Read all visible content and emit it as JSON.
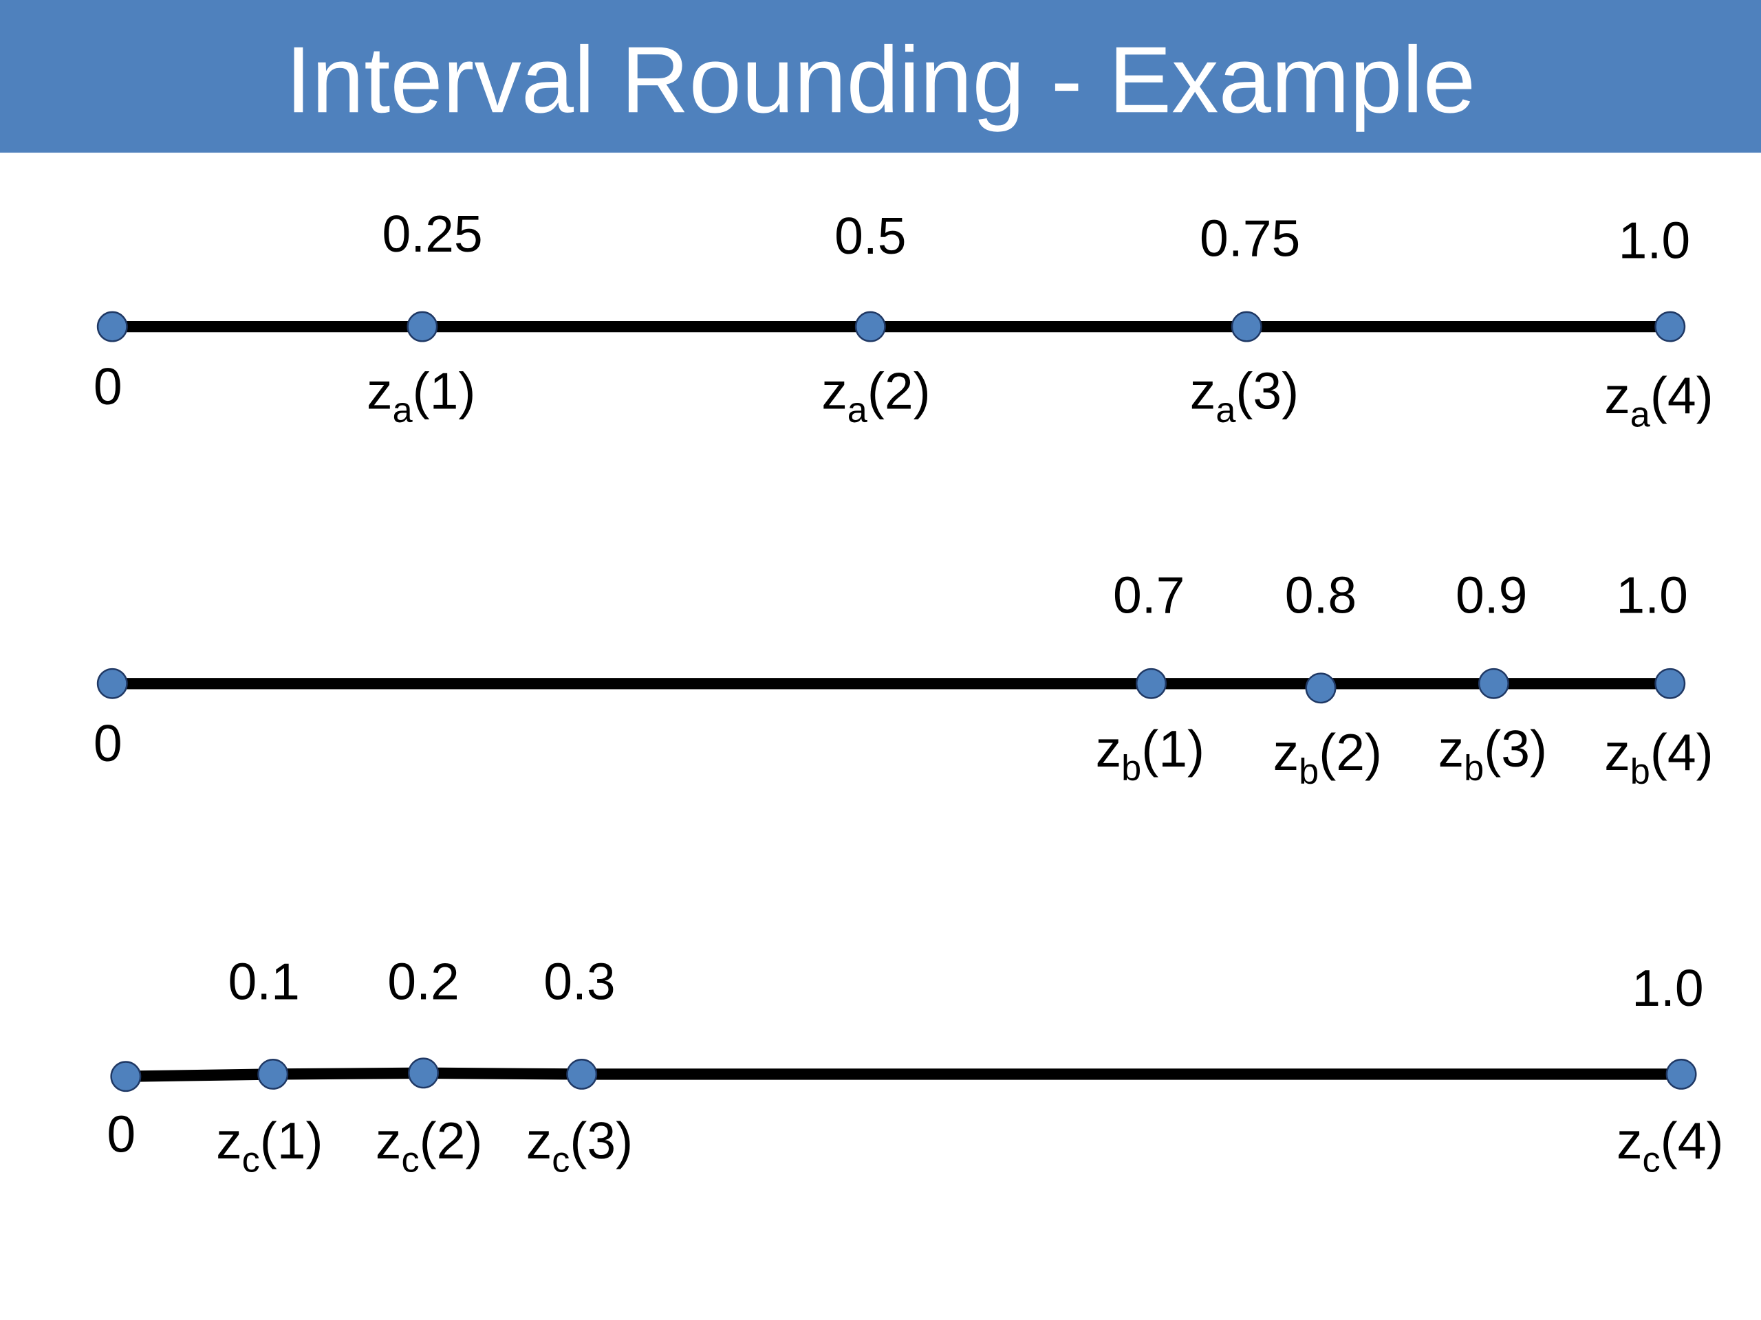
{
  "title": "Interval Rounding - Example",
  "rows": [
    {
      "top_labels": [
        "0.25",
        "0.5",
        "0.75",
        "1.0"
      ],
      "origin_label": "0",
      "point_labels": [
        {
          "base": "z",
          "sub": "a",
          "arg": "(1)"
        },
        {
          "base": "z",
          "sub": "a",
          "arg": "(2)"
        },
        {
          "base": "z",
          "sub": "a",
          "arg": "(3)"
        },
        {
          "base": "z",
          "sub": "a",
          "arg": "(4)"
        }
      ]
    },
    {
      "top_labels": [
        "0.7",
        "0.8",
        "0.9",
        "1.0"
      ],
      "origin_label": "0",
      "point_labels": [
        {
          "base": "z",
          "sub": "b",
          "arg": "(1)"
        },
        {
          "base": "z",
          "sub": "b",
          "arg": "(2)"
        },
        {
          "base": "z",
          "sub": "b",
          "arg": "(3)"
        },
        {
          "base": "z",
          "sub": "b",
          "arg": "(4)"
        }
      ]
    },
    {
      "top_labels": [
        "0.1",
        "0.2",
        "0.3",
        "1.0"
      ],
      "origin_label": "0",
      "point_labels": [
        {
          "base": "z",
          "sub": "c",
          "arg": "(1)"
        },
        {
          "base": "z",
          "sub": "c",
          "arg": "(2)"
        },
        {
          "base": "z",
          "sub": "c",
          "arg": "(3)"
        },
        {
          "base": "z",
          "sub": "c",
          "arg": "(4)"
        }
      ]
    }
  ]
}
